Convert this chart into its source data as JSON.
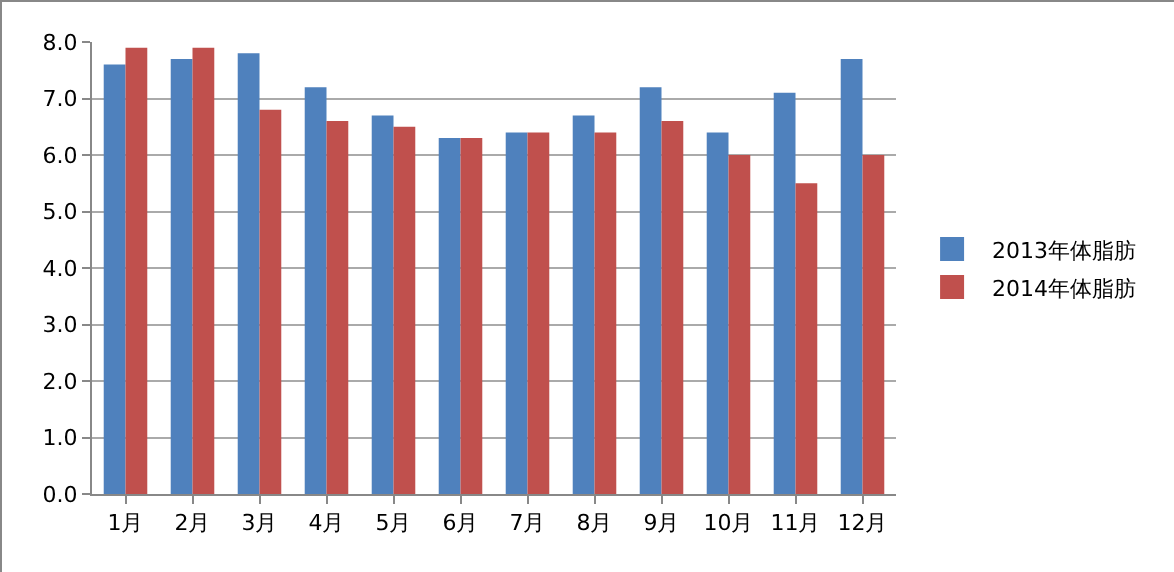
{
  "chart_data": {
    "type": "bar",
    "categories": [
      "1月",
      "2月",
      "3月",
      "4月",
      "5月",
      "6月",
      "7月",
      "8月",
      "9月",
      "10月",
      "11月",
      "12月"
    ],
    "series": [
      {
        "name": "2013年体脂肪",
        "color": "#4f81bd",
        "values": [
          7.6,
          7.7,
          7.8,
          7.2,
          6.7,
          6.3,
          6.4,
          6.7,
          7.2,
          6.4,
          7.1,
          7.7
        ]
      },
      {
        "name": "2014年体脂肪",
        "color": "#c0504d",
        "values": [
          7.9,
          7.9,
          6.8,
          6.6,
          6.5,
          6.3,
          6.4,
          6.4,
          6.6,
          6.0,
          5.5,
          6.0
        ]
      }
    ],
    "ylim": [
      0,
      8
    ],
    "yticks": [
      {
        "value": 0,
        "label": "0.0"
      },
      {
        "value": 1,
        "label": "1.0"
      },
      {
        "value": 2,
        "label": "2.0"
      },
      {
        "value": 3,
        "label": "3.0"
      },
      {
        "value": 4,
        "label": "4.0"
      },
      {
        "value": 5,
        "label": "5.0"
      },
      {
        "value": 6,
        "label": "6.0"
      },
      {
        "value": 7,
        "label": "7.0"
      },
      {
        "value": 8,
        "label": "8.0"
      }
    ],
    "grid": "y",
    "legend": "right"
  }
}
